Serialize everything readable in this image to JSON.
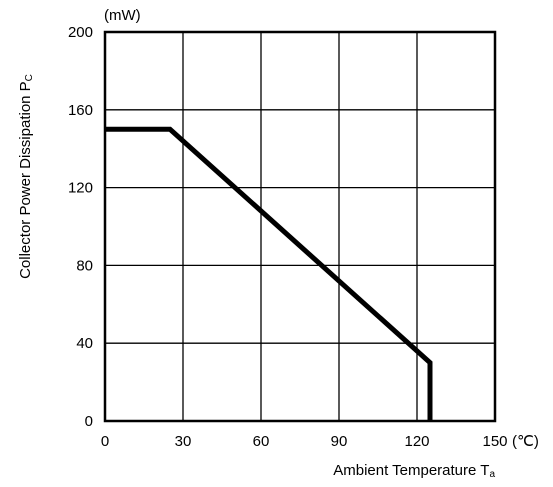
{
  "chart_data": {
    "type": "line",
    "title": "",
    "xlabel": "Ambient Temperature T",
    "xlabel_subscript": "a",
    "ylabel": "Collector Power Dissipation P",
    "ylabel_subscript": "C",
    "y_unit": "(mW)",
    "x_unit": "(℃)",
    "xlim": [
      0,
      150
    ],
    "ylim": [
      0,
      200
    ],
    "x_ticks": [
      0,
      30,
      60,
      90,
      120,
      150
    ],
    "y_ticks": [
      0,
      40,
      80,
      120,
      160,
      200
    ],
    "grid": true,
    "series": [
      {
        "x": [
          0,
          25,
          125,
          125
        ],
        "y": [
          150,
          150,
          30,
          0
        ]
      }
    ]
  }
}
